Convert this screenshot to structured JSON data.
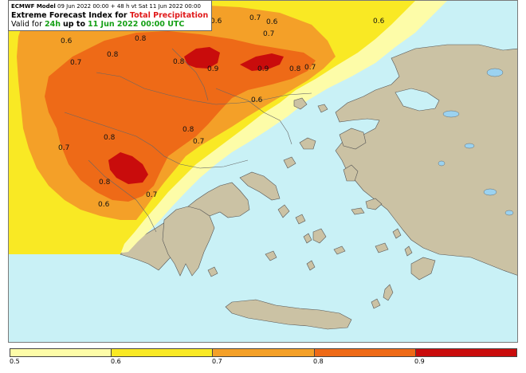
{
  "header": {
    "model": "ECMWF Model",
    "run_info": "09 Jun 2022 00:00 + 48 h vt Sat 11 Jun 2022 00:00",
    "title_prefix": "Extreme Forecast Index for",
    "title_highlight": "Total Precipitation",
    "valid_prefix": "Valid for",
    "valid_period": "24h",
    "valid_mid": "up to",
    "valid_date": "11 Jun 2022 00:00 UTC"
  },
  "colors": {
    "sea": "#c9f1f6",
    "land": "#cbc2a4",
    "efi_05": "#fdfca8",
    "efi_06": "#f9e924",
    "efi_07": "#f4a028",
    "efi_08": "#ee6a17",
    "efi_09": "#c90c0c"
  },
  "contour_labels": [
    "0.6",
    "0.7",
    "0.6",
    "0.7",
    "0.6",
    "0.6",
    "0.8",
    "0.8",
    "0.7",
    "0.8",
    "0.9",
    "0.9",
    "0.8",
    "0.7",
    "0.6",
    "0.8",
    "0.7",
    "0.7",
    "0.8",
    "0.8",
    "0.7",
    "0.6"
  ],
  "legend": {
    "ticks": [
      "0.5",
      "0.6",
      "0.7",
      "0.8",
      "0.9"
    ]
  }
}
